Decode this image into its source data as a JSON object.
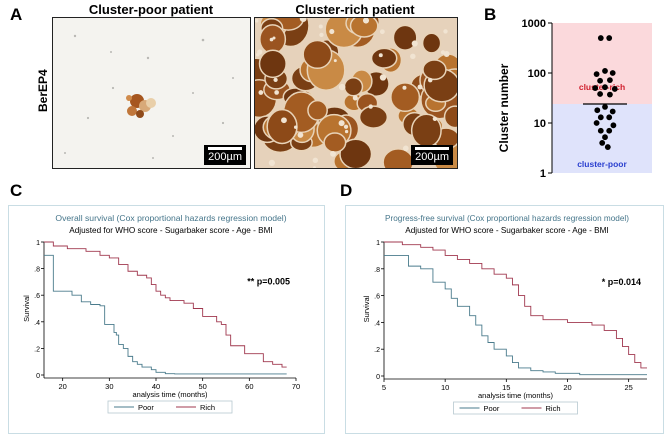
{
  "panels": {
    "A": "A",
    "B": "B",
    "C": "C",
    "D": "D"
  },
  "panel_a": {
    "title_poor": "Cluster-poor patient",
    "title_rich": "Cluster-rich patient",
    "stain_label": "BerEP4",
    "scale_label": "200µm"
  },
  "colors": {
    "km_poor": "#4a7b8c",
    "km_rich": "#a0384f",
    "rich_zone": "#fbd9dc",
    "poor_zone": "#dfe3fb",
    "rich_text": "#d0202e",
    "poor_text": "#2a3fcf"
  },
  "chart_data": [
    {
      "type": "scatter",
      "panel": "B",
      "ylabel": "Cluster number",
      "yscale": "log",
      "ylim": [
        1,
        1000
      ],
      "yticks": [
        1,
        10,
        100,
        1000
      ],
      "ytick_labels": [
        "1",
        "10",
        "100",
        "1000"
      ],
      "threshold": 24,
      "zone_labels": {
        "upper": "cluster-rich",
        "lower": "cluster-poor"
      },
      "points": [
        {
          "x": -0.3,
          "y": 500
        },
        {
          "x": 0.3,
          "y": 500
        },
        {
          "x": 0,
          "y": 110
        },
        {
          "x": -0.6,
          "y": 95
        },
        {
          "x": 0.55,
          "y": 100
        },
        {
          "x": -0.35,
          "y": 70
        },
        {
          "x": 0.35,
          "y": 72
        },
        {
          "x": -0.7,
          "y": 50
        },
        {
          "x": 0,
          "y": 52
        },
        {
          "x": 0.7,
          "y": 48
        },
        {
          "x": -0.35,
          "y": 38
        },
        {
          "x": 0.35,
          "y": 37
        },
        {
          "x": 0,
          "y": 21
        },
        {
          "x": -0.55,
          "y": 18
        },
        {
          "x": 0.55,
          "y": 17
        },
        {
          "x": -0.3,
          "y": 13
        },
        {
          "x": 0.3,
          "y": 13
        },
        {
          "x": -0.6,
          "y": 10
        },
        {
          "x": 0.6,
          "y": 9
        },
        {
          "x": -0.3,
          "y": 7
        },
        {
          "x": 0.3,
          "y": 7
        },
        {
          "x": 0,
          "y": 5.2
        },
        {
          "x": -0.2,
          "y": 4
        },
        {
          "x": 0.2,
          "y": 3.3
        }
      ]
    },
    {
      "type": "line",
      "panel": "C",
      "title": "Overall survival (Cox proportional hazards regression model)",
      "subtitle": "Adjusted for WHO score - Sugarbaker score - Age - BMI",
      "xlabel": "analysis time (months)",
      "ylabel": "Survival",
      "xlim": [
        16,
        70
      ],
      "ylim": [
        0,
        1
      ],
      "xticks": [
        20,
        30,
        40,
        50,
        60,
        70
      ],
      "xtick_labels": [
        "20",
        "30",
        "40",
        "50",
        "60",
        "70"
      ],
      "yticks": [
        0,
        0.2,
        0.4,
        0.6,
        0.8,
        1
      ],
      "ytick_labels": [
        "0",
        ".2",
        ".4",
        ".6",
        ".8",
        "1"
      ],
      "annotation": "** p=0.005",
      "legend": [
        "Poor",
        "Rich"
      ],
      "series": [
        {
          "name": "Poor",
          "color": "#4a7b8c",
          "steps": [
            [
              16,
              0.9
            ],
            [
              18,
              0.63
            ],
            [
              22,
              0.6
            ],
            [
              24,
              0.55
            ],
            [
              26,
              0.53
            ],
            [
              28,
              0.52
            ],
            [
              29,
              0.38
            ],
            [
              31,
              0.32
            ],
            [
              31.5,
              0.3
            ],
            [
              32,
              0.23
            ],
            [
              33,
              0.2
            ],
            [
              34,
              0.14
            ],
            [
              35,
              0.1
            ],
            [
              36,
              0.08
            ],
            [
              37,
              0.06
            ],
            [
              39,
              0.04
            ],
            [
              40,
              0.02
            ],
            [
              42,
              0.01
            ],
            [
              44,
              0.008
            ],
            [
              68,
              0.008
            ]
          ]
        },
        {
          "name": "Rich",
          "color": "#a0384f",
          "steps": [
            [
              16,
              1
            ],
            [
              18,
              0.97
            ],
            [
              21,
              0.95
            ],
            [
              25,
              0.93
            ],
            [
              28,
              0.9
            ],
            [
              30,
              0.88
            ],
            [
              32,
              0.83
            ],
            [
              34,
              0.78
            ],
            [
              36,
              0.75
            ],
            [
              38,
              0.73
            ],
            [
              39,
              0.68
            ],
            [
              40,
              0.63
            ],
            [
              41,
              0.6
            ],
            [
              42,
              0.58
            ],
            [
              43,
              0.56
            ],
            [
              46,
              0.54
            ],
            [
              48,
              0.5
            ],
            [
              50,
              0.44
            ],
            [
              53,
              0.4
            ],
            [
              54,
              0.38
            ],
            [
              55,
              0.3
            ],
            [
              56,
              0.22
            ],
            [
              59,
              0.16
            ],
            [
              63,
              0.1
            ],
            [
              65,
              0.08
            ],
            [
              67,
              0.06
            ],
            [
              68,
              0.06
            ]
          ]
        }
      ]
    },
    {
      "type": "line",
      "panel": "D",
      "title": "Progress-free survival (Cox proportional hazards regression model)",
      "subtitle": "Adjusted for WHO score - Sugarbaker score - Age - BMI",
      "xlabel": "analysis time (months)",
      "ylabel": "Survival",
      "xlim": [
        5,
        26.5
      ],
      "ylim": [
        0,
        1
      ],
      "xticks": [
        5,
        10,
        15,
        20,
        25
      ],
      "xtick_labels": [
        "5",
        "10",
        "15",
        "20",
        "25"
      ],
      "yticks": [
        0,
        0.2,
        0.4,
        0.6,
        0.8,
        1
      ],
      "ytick_labels": [
        "0",
        ".2",
        ".4",
        ".6",
        ".8",
        "1"
      ],
      "annotation": "* p=0.014",
      "legend": [
        "Poor",
        "Rich"
      ],
      "series": [
        {
          "name": "Poor",
          "color": "#4a7b8c",
          "steps": [
            [
              5,
              0.9
            ],
            [
              6.5,
              0.9
            ],
            [
              7,
              0.82
            ],
            [
              8,
              0.8
            ],
            [
              9,
              0.7
            ],
            [
              10,
              0.65
            ],
            [
              10.5,
              0.58
            ],
            [
              11,
              0.52
            ],
            [
              12,
              0.45
            ],
            [
              12.5,
              0.38
            ],
            [
              13,
              0.3
            ],
            [
              13.5,
              0.25
            ],
            [
              14,
              0.2
            ],
            [
              15,
              0.15
            ],
            [
              15.5,
              0.1
            ],
            [
              16,
              0.06
            ],
            [
              17,
              0.04
            ],
            [
              18,
              0.03
            ],
            [
              19,
              0.02
            ],
            [
              21,
              0.01
            ],
            [
              26.5,
              0.01
            ]
          ]
        },
        {
          "name": "Rich",
          "color": "#a0384f",
          "steps": [
            [
              5,
              1
            ],
            [
              6.5,
              0.98
            ],
            [
              8,
              0.96
            ],
            [
              9,
              0.94
            ],
            [
              10,
              0.9
            ],
            [
              11,
              0.87
            ],
            [
              12,
              0.84
            ],
            [
              13,
              0.8
            ],
            [
              14,
              0.76
            ],
            [
              15,
              0.73
            ],
            [
              15.5,
              0.68
            ],
            [
              16,
              0.6
            ],
            [
              16.5,
              0.52
            ],
            [
              17,
              0.45
            ],
            [
              18,
              0.42
            ],
            [
              20,
              0.4
            ],
            [
              22,
              0.38
            ],
            [
              23,
              0.34
            ],
            [
              24,
              0.28
            ],
            [
              24.5,
              0.22
            ],
            [
              25,
              0.16
            ],
            [
              25.5,
              0.1
            ],
            [
              26,
              0.06
            ],
            [
              26.5,
              0.06
            ]
          ]
        }
      ]
    }
  ]
}
